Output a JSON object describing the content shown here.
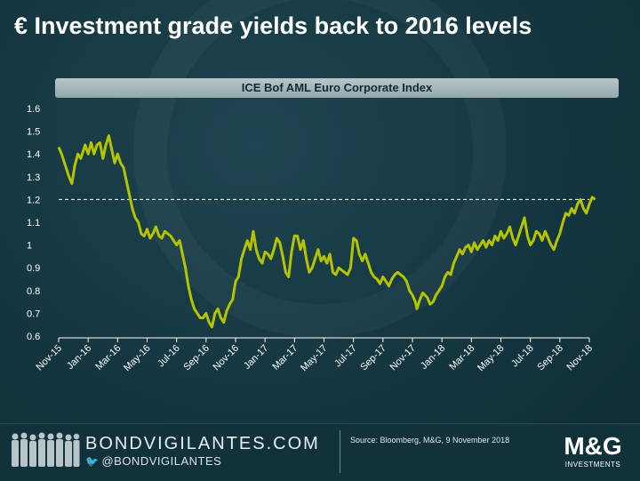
{
  "title": "€ Investment grade yields back to 2016 levels",
  "chart_data": {
    "type": "line",
    "title": "ICE Bof AML Euro Corporate Index",
    "xlabel": "",
    "ylabel": "",
    "x_labels": [
      "Nov-15",
      "Jan-16",
      "Mar-16",
      "May-16",
      "Jul-16",
      "Sep-16",
      "Nov-16",
      "Jan-17",
      "Mar-17",
      "May-17",
      "Jul-17",
      "Sep-17",
      "Nov-17",
      "Jan-18",
      "Mar-18",
      "May-18",
      "Jul-18",
      "Sep-18",
      "Nov-18"
    ],
    "ylim": [
      0.6,
      1.6
    ],
    "yticks": [
      "0.6",
      "0.7",
      "0.8",
      "0.9",
      "1",
      "1.1",
      "1.2",
      "1.3",
      "1.4",
      "1.5",
      "1.6"
    ],
    "reference_line": 1.2,
    "grid": false,
    "series": [
      {
        "color": "#b5c400",
        "points": [
          [
            0.0,
            1.43
          ],
          [
            0.1,
            1.4
          ],
          [
            0.2,
            1.36
          ],
          [
            0.35,
            1.3
          ],
          [
            0.45,
            1.27
          ],
          [
            0.55,
            1.35
          ],
          [
            0.65,
            1.4
          ],
          [
            0.75,
            1.38
          ],
          [
            0.9,
            1.44
          ],
          [
            1.0,
            1.4
          ],
          [
            1.1,
            1.45
          ],
          [
            1.2,
            1.4
          ],
          [
            1.3,
            1.44
          ],
          [
            1.4,
            1.45
          ],
          [
            1.5,
            1.38
          ],
          [
            1.6,
            1.44
          ],
          [
            1.7,
            1.48
          ],
          [
            1.8,
            1.42
          ],
          [
            1.9,
            1.36
          ],
          [
            2.0,
            1.4
          ],
          [
            2.1,
            1.36
          ],
          [
            2.2,
            1.34
          ],
          [
            2.3,
            1.28
          ],
          [
            2.4,
            1.22
          ],
          [
            2.5,
            1.16
          ],
          [
            2.6,
            1.12
          ],
          [
            2.7,
            1.1
          ],
          [
            2.8,
            1.05
          ],
          [
            2.9,
            1.04
          ],
          [
            3.0,
            1.07
          ],
          [
            3.1,
            1.03
          ],
          [
            3.2,
            1.05
          ],
          [
            3.3,
            1.08
          ],
          [
            3.4,
            1.04
          ],
          [
            3.5,
            1.03
          ],
          [
            3.6,
            1.06
          ],
          [
            3.7,
            1.05
          ],
          [
            3.8,
            1.04
          ],
          [
            3.9,
            1.02
          ],
          [
            4.0,
            1.0
          ],
          [
            4.1,
            1.02
          ],
          [
            4.2,
            0.96
          ],
          [
            4.3,
            0.9
          ],
          [
            4.4,
            0.82
          ],
          [
            4.5,
            0.76
          ],
          [
            4.6,
            0.72
          ],
          [
            4.7,
            0.7
          ],
          [
            4.8,
            0.68
          ],
          [
            4.9,
            0.68
          ],
          [
            5.0,
            0.7
          ],
          [
            5.1,
            0.66
          ],
          [
            5.2,
            0.64
          ],
          [
            5.3,
            0.7
          ],
          [
            5.4,
            0.72
          ],
          [
            5.5,
            0.68
          ],
          [
            5.6,
            0.66
          ],
          [
            5.7,
            0.71
          ],
          [
            5.8,
            0.74
          ],
          [
            5.9,
            0.76
          ],
          [
            6.0,
            0.84
          ],
          [
            6.1,
            0.86
          ],
          [
            6.2,
            0.94
          ],
          [
            6.3,
            0.98
          ],
          [
            6.4,
            1.02
          ],
          [
            6.5,
            0.98
          ],
          [
            6.6,
            1.06
          ],
          [
            6.7,
            0.98
          ],
          [
            6.8,
            0.94
          ],
          [
            6.9,
            0.92
          ],
          [
            7.0,
            0.97
          ],
          [
            7.1,
            0.96
          ],
          [
            7.2,
            0.94
          ],
          [
            7.3,
            0.98
          ],
          [
            7.4,
            1.03
          ],
          [
            7.5,
            1.01
          ],
          [
            7.6,
            0.95
          ],
          [
            7.7,
            0.88
          ],
          [
            7.8,
            0.86
          ],
          [
            7.9,
            0.97
          ],
          [
            8.0,
            1.04
          ],
          [
            8.1,
            1.04
          ],
          [
            8.2,
            0.98
          ],
          [
            8.3,
            1.02
          ],
          [
            8.4,
            0.94
          ],
          [
            8.5,
            0.88
          ],
          [
            8.6,
            0.9
          ],
          [
            8.7,
            0.94
          ],
          [
            8.8,
            0.98
          ],
          [
            8.9,
            0.93
          ],
          [
            9.0,
            0.95
          ],
          [
            9.1,
            0.92
          ],
          [
            9.2,
            0.96
          ],
          [
            9.3,
            0.88
          ],
          [
            9.4,
            0.87
          ],
          [
            9.5,
            0.9
          ],
          [
            9.6,
            0.89
          ],
          [
            9.7,
            0.88
          ],
          [
            9.8,
            0.87
          ],
          [
            9.9,
            0.9
          ],
          [
            10.0,
            1.03
          ],
          [
            10.1,
            1.02
          ],
          [
            10.2,
            0.96
          ],
          [
            10.3,
            0.93
          ],
          [
            10.4,
            0.96
          ],
          [
            10.5,
            0.92
          ],
          [
            10.6,
            0.88
          ],
          [
            10.7,
            0.86
          ],
          [
            10.8,
            0.85
          ],
          [
            10.9,
            0.83
          ],
          [
            11.0,
            0.86
          ],
          [
            11.1,
            0.84
          ],
          [
            11.2,
            0.82
          ],
          [
            11.3,
            0.85
          ],
          [
            11.4,
            0.87
          ],
          [
            11.5,
            0.88
          ],
          [
            11.6,
            0.87
          ],
          [
            11.7,
            0.86
          ],
          [
            11.8,
            0.84
          ],
          [
            11.9,
            0.8
          ],
          [
            12.0,
            0.78
          ],
          [
            12.1,
            0.75
          ],
          [
            12.15,
            0.72
          ],
          [
            12.25,
            0.76
          ],
          [
            12.35,
            0.79
          ],
          [
            12.5,
            0.77
          ],
          [
            12.6,
            0.74
          ],
          [
            12.7,
            0.75
          ],
          [
            12.8,
            0.78
          ],
          [
            12.9,
            0.8
          ],
          [
            13.0,
            0.82
          ],
          [
            13.1,
            0.86
          ],
          [
            13.2,
            0.88
          ],
          [
            13.3,
            0.87
          ],
          [
            13.4,
            0.92
          ],
          [
            13.5,
            0.95
          ],
          [
            13.6,
            0.98
          ],
          [
            13.7,
            0.96
          ],
          [
            13.8,
            0.99
          ],
          [
            13.9,
            1.0
          ],
          [
            14.0,
            0.97
          ],
          [
            14.1,
            1.01
          ],
          [
            14.2,
            0.98
          ],
          [
            14.3,
            1.0
          ],
          [
            14.4,
            1.02
          ],
          [
            14.5,
            0.99
          ],
          [
            14.6,
            1.02
          ],
          [
            14.7,
            1.0
          ],
          [
            14.8,
            1.04
          ],
          [
            14.9,
            1.02
          ],
          [
            15.0,
            1.06
          ],
          [
            15.1,
            1.03
          ],
          [
            15.2,
            1.05
          ],
          [
            15.3,
            1.08
          ],
          [
            15.4,
            1.03
          ],
          [
            15.5,
            1.0
          ],
          [
            15.6,
            1.04
          ],
          [
            15.7,
            1.08
          ],
          [
            15.8,
            1.12
          ],
          [
            15.9,
            1.04
          ],
          [
            16.0,
            1.0
          ],
          [
            16.1,
            1.02
          ],
          [
            16.2,
            1.06
          ],
          [
            16.3,
            1.05
          ],
          [
            16.4,
            1.02
          ],
          [
            16.5,
            1.06
          ],
          [
            16.6,
            1.03
          ],
          [
            16.7,
            1.0
          ],
          [
            16.8,
            0.98
          ],
          [
            16.9,
            1.02
          ],
          [
            17.0,
            1.05
          ],
          [
            17.1,
            1.1
          ],
          [
            17.2,
            1.14
          ],
          [
            17.3,
            1.13
          ],
          [
            17.4,
            1.16
          ],
          [
            17.5,
            1.14
          ],
          [
            17.6,
            1.18
          ],
          [
            17.7,
            1.2
          ],
          [
            17.8,
            1.16
          ],
          [
            17.9,
            1.14
          ],
          [
            18.0,
            1.18
          ],
          [
            18.1,
            1.21
          ],
          [
            18.2,
            1.2
          ]
        ]
      }
    ]
  },
  "footer": {
    "brand": "BONDVIGILANTES.COM",
    "handle": "@BONDVIGILANTES",
    "source": "Source: Bloomberg, M&G, 9 November 2018",
    "logo_main": "M&G",
    "logo_sub": "INVESTMENTS"
  },
  "colors": {
    "background": "#143640",
    "line": "#b5c400",
    "reference": "#ffffff"
  }
}
